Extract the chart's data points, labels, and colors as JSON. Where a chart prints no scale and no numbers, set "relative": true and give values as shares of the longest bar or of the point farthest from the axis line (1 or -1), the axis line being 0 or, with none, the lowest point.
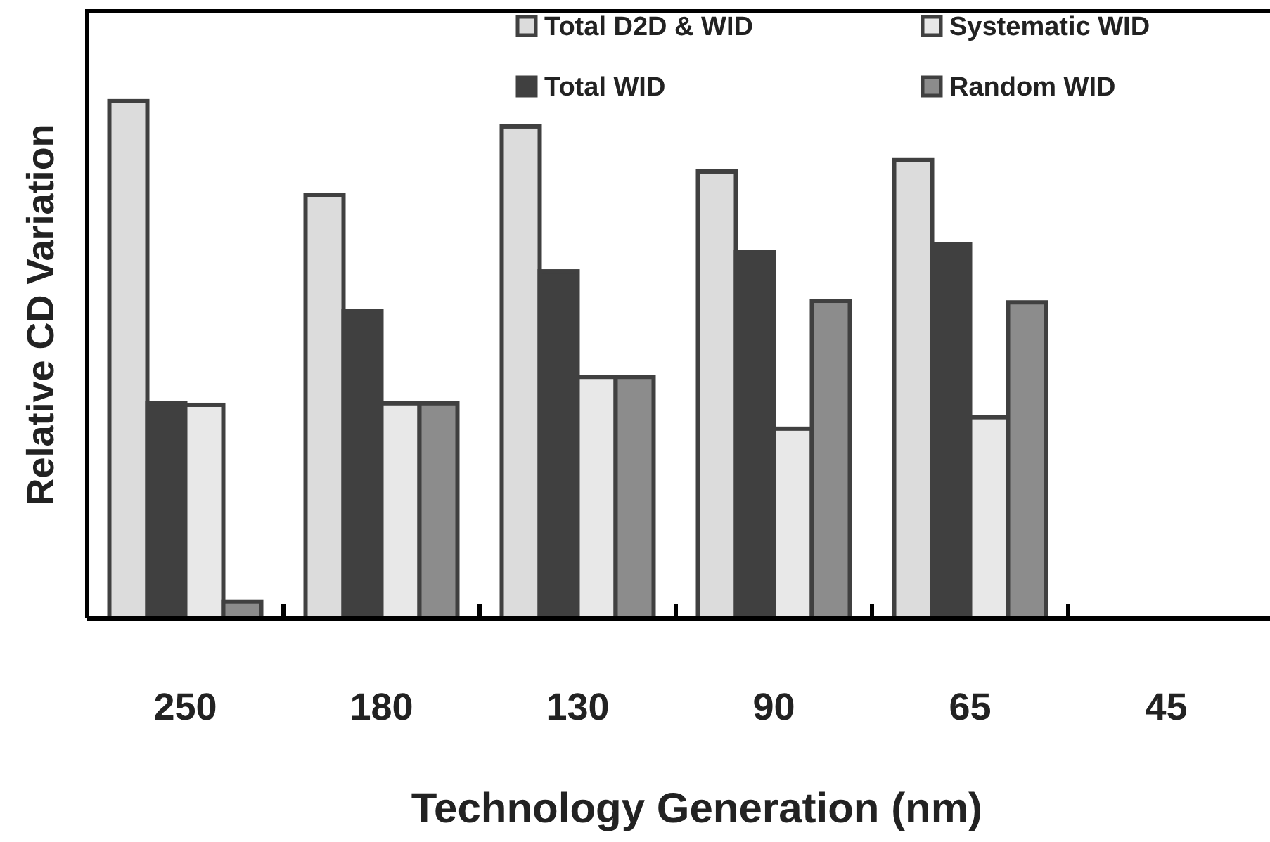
{
  "chart_data": {
    "type": "bar",
    "relative": true,
    "xlabel": "Technology Generation (nm)",
    "ylabel": "Relative CD Variation",
    "categories": [
      "250",
      "180",
      "130",
      "90",
      "65",
      "45"
    ],
    "series": [
      {
        "name": "Total D2D & WID",
        "color": "#dcdcdc",
        "values": [
          1.0,
          0.818,
          0.951,
          0.864,
          0.886,
          null
        ]
      },
      {
        "name": "Total WID",
        "color": "#404040",
        "values": [
          0.416,
          0.595,
          0.671,
          0.709,
          0.723,
          null
        ]
      },
      {
        "name": "Systematic WID",
        "color": "#e8e8e8",
        "values": [
          0.413,
          0.416,
          0.467,
          0.367,
          0.389,
          null
        ]
      },
      {
        "name": "Random WID",
        "color": "#8c8c8c",
        "values": [
          0.033,
          0.416,
          0.467,
          0.614,
          0.611,
          null
        ]
      }
    ],
    "legend": "top right"
  }
}
